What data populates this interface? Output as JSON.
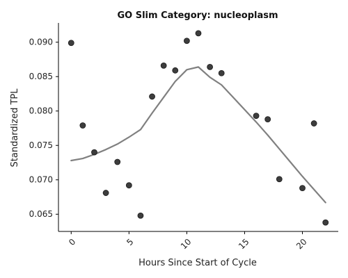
{
  "chart_data": {
    "type": "scatter",
    "title": "GO Slim Category: nucleoplasm",
    "xlabel": "Hours Since Start of Cycle",
    "ylabel": "Standardized TPL",
    "xlim": [
      -1.1,
      23.1
    ],
    "ylim": [
      0.0625,
      0.0928
    ],
    "x_ticks": [
      0,
      5,
      10,
      15,
      20
    ],
    "x_tick_labels": [
      "0",
      "5",
      "10",
      "15",
      "20"
    ],
    "y_ticks": [
      0.065,
      0.07,
      0.075,
      0.08,
      0.085,
      0.09
    ],
    "y_tick_labels": [
      "0.065",
      "0.070",
      "0.075",
      "0.080",
      "0.085",
      "0.090"
    ],
    "grid": false,
    "spines": "left-bottom",
    "series": [
      {
        "type": "scatter",
        "color": "#333333",
        "points": [
          {
            "x": 0,
            "y": 0.0899
          },
          {
            "x": 1,
            "y": 0.0779
          },
          {
            "x": 2,
            "y": 0.074
          },
          {
            "x": 3,
            "y": 0.0681
          },
          {
            "x": 4,
            "y": 0.0726
          },
          {
            "x": 5,
            "y": 0.0692
          },
          {
            "x": 6,
            "y": 0.0648
          },
          {
            "x": 7,
            "y": 0.0821
          },
          {
            "x": 8,
            "y": 0.0866
          },
          {
            "x": 9,
            "y": 0.0859
          },
          {
            "x": 10,
            "y": 0.0902
          },
          {
            "x": 11,
            "y": 0.0913
          },
          {
            "x": 12,
            "y": 0.0864
          },
          {
            "x": 13,
            "y": 0.0855
          },
          {
            "x": 16,
            "y": 0.0793
          },
          {
            "x": 17,
            "y": 0.0788
          },
          {
            "x": 18,
            "y": 0.0701
          },
          {
            "x": 20,
            "y": 0.0688
          },
          {
            "x": 21,
            "y": 0.0782
          },
          {
            "x": 22,
            "y": 0.0638
          }
        ]
      },
      {
        "type": "line",
        "color": "#808080",
        "points": [
          {
            "x": 0,
            "y": 0.0728
          },
          {
            "x": 1,
            "y": 0.0731
          },
          {
            "x": 2,
            "y": 0.0737
          },
          {
            "x": 3,
            "y": 0.0744
          },
          {
            "x": 4,
            "y": 0.0752
          },
          {
            "x": 5,
            "y": 0.0762
          },
          {
            "x": 6,
            "y": 0.0773
          },
          {
            "x": 7,
            "y": 0.0797
          },
          {
            "x": 8,
            "y": 0.082
          },
          {
            "x": 9,
            "y": 0.0843
          },
          {
            "x": 10,
            "y": 0.086
          },
          {
            "x": 11,
            "y": 0.0864
          },
          {
            "x": 12,
            "y": 0.0849
          },
          {
            "x": 13,
            "y": 0.0838
          },
          {
            "x": 14,
            "y": 0.082
          },
          {
            "x": 15,
            "y": 0.0802
          },
          {
            "x": 16,
            "y": 0.0784
          },
          {
            "x": 17,
            "y": 0.0765
          },
          {
            "x": 18,
            "y": 0.0745
          },
          {
            "x": 19,
            "y": 0.0725
          },
          {
            "x": 20,
            "y": 0.0705
          },
          {
            "x": 21,
            "y": 0.0686
          },
          {
            "x": 22,
            "y": 0.0667
          }
        ]
      }
    ]
  }
}
